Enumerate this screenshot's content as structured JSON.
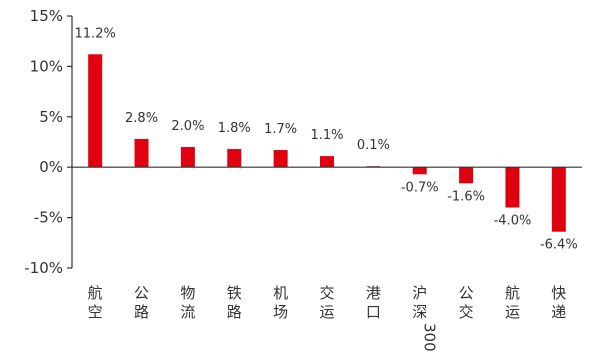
{
  "chart_data": {
    "type": "bar",
    "categories": [
      "航空",
      "公路",
      "物流",
      "铁路",
      "机场",
      "交运",
      "港口",
      "沪深300",
      "公交",
      "航运",
      "快递"
    ],
    "values": [
      11.2,
      2.8,
      2.0,
      1.8,
      1.7,
      1.1,
      0.1,
      -0.7,
      -1.6,
      -4.0,
      -6.4
    ],
    "data_labels": [
      "11.2%",
      "2.8%",
      "2.0%",
      "1.8%",
      "1.7%",
      "1.1%",
      "0.1%",
      "-0.7%",
      "-1.6%",
      "-4.0%",
      "-6.4%"
    ],
    "yticks": [
      15,
      10,
      5,
      0,
      -5,
      -10
    ],
    "ytick_labels": [
      "15%",
      "10%",
      "5%",
      "0%",
      "-5%",
      "-10%"
    ],
    "ylim": [
      -10,
      15
    ],
    "title": "",
    "xlabel": "",
    "ylabel": "",
    "grid": false,
    "legend": "none",
    "bar_color": "#e0000f",
    "axis_color": "#333333"
  }
}
